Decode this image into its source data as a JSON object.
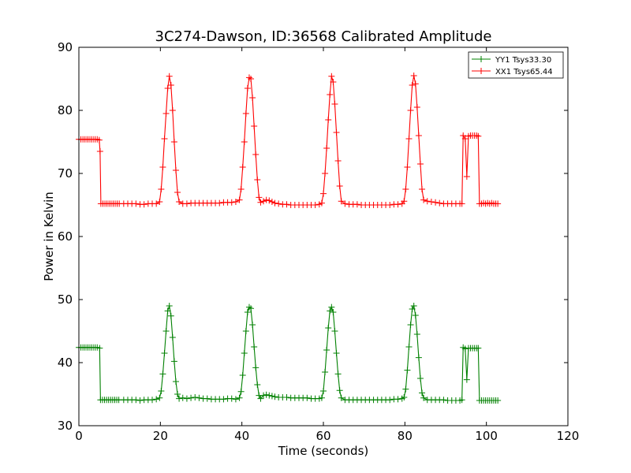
{
  "chart_data": {
    "type": "line",
    "title": "3C274-Dawson, ID:36568 Calibrated Amplitude",
    "xlabel": "Time (seconds)",
    "ylabel": "Power in Kelvin",
    "xlim": [
      0,
      120
    ],
    "ylim": [
      30,
      90
    ],
    "xticks": [
      0,
      20,
      40,
      60,
      80,
      100,
      120
    ],
    "yticks": [
      30,
      40,
      50,
      60,
      70,
      80,
      90
    ],
    "grid": false,
    "legend_position": "top-right",
    "series": [
      {
        "name": "YY1 Tsys33.30",
        "color": "#008000",
        "base": 34.1,
        "pre": 42.4,
        "points": [
          [
            0,
            42.4
          ],
          [
            0.5,
            42.4
          ],
          [
            1,
            42.4
          ],
          [
            1.5,
            42.4
          ],
          [
            2,
            42.4
          ],
          [
            2.5,
            42.4
          ],
          [
            3,
            42.4
          ],
          [
            3.5,
            42.4
          ],
          [
            4,
            42.4
          ],
          [
            4.5,
            42.4
          ],
          [
            5.1,
            42.3
          ],
          [
            5.3,
            34.1
          ],
          [
            5.8,
            34.1
          ],
          [
            6.3,
            34.1
          ],
          [
            6.8,
            34.1
          ],
          [
            7.3,
            34.1
          ],
          [
            7.8,
            34.1
          ],
          [
            8.3,
            34.1
          ],
          [
            8.8,
            34.1
          ],
          [
            9.3,
            34.1
          ],
          [
            9.8,
            34.1
          ],
          [
            11,
            34.1
          ],
          [
            12,
            34.1
          ],
          [
            13,
            34.1
          ],
          [
            14,
            34.1
          ],
          [
            15,
            34.0
          ],
          [
            16,
            34.1
          ],
          [
            17,
            34.1
          ],
          [
            18,
            34.1
          ],
          [
            19,
            34.2
          ],
          [
            19.8,
            34.4
          ],
          [
            20.2,
            35.5
          ],
          [
            20.6,
            38.2
          ],
          [
            21.0,
            41.5
          ],
          [
            21.4,
            45.0
          ],
          [
            21.8,
            48.2
          ],
          [
            22.2,
            49.0
          ],
          [
            22.6,
            47.4
          ],
          [
            23.0,
            44.0
          ],
          [
            23.4,
            40.2
          ],
          [
            23.8,
            37.0
          ],
          [
            24.2,
            35.0
          ],
          [
            24.6,
            34.3
          ],
          [
            25.5,
            34.4
          ],
          [
            26.5,
            34.3
          ],
          [
            27.5,
            34.4
          ],
          [
            28.5,
            34.5
          ],
          [
            29.5,
            34.4
          ],
          [
            30.5,
            34.3
          ],
          [
            31.5,
            34.3
          ],
          [
            32.5,
            34.2
          ],
          [
            33.5,
            34.2
          ],
          [
            34.5,
            34.2
          ],
          [
            35.5,
            34.2
          ],
          [
            36.5,
            34.3
          ],
          [
            37.5,
            34.3
          ],
          [
            38.5,
            34.2
          ],
          [
            39.4,
            34.4
          ],
          [
            39.8,
            35.4
          ],
          [
            40.2,
            38.0
          ],
          [
            40.6,
            41.5
          ],
          [
            41.0,
            45.0
          ],
          [
            41.4,
            48.0
          ],
          [
            41.8,
            48.8
          ],
          [
            42.2,
            48.6
          ],
          [
            42.6,
            46.0
          ],
          [
            43.0,
            42.5
          ],
          [
            43.4,
            39.2
          ],
          [
            43.8,
            36.5
          ],
          [
            44.2,
            34.8
          ],
          [
            44.6,
            34.3
          ],
          [
            45.3,
            34.8
          ],
          [
            46.0,
            34.9
          ],
          [
            46.7,
            34.8
          ],
          [
            47.4,
            34.7
          ],
          [
            48.1,
            34.6
          ],
          [
            49,
            34.5
          ],
          [
            50,
            34.5
          ],
          [
            51,
            34.5
          ],
          [
            52,
            34.4
          ],
          [
            53,
            34.4
          ],
          [
            54,
            34.4
          ],
          [
            55,
            34.4
          ],
          [
            56,
            34.4
          ],
          [
            57,
            34.3
          ],
          [
            58,
            34.3
          ],
          [
            59,
            34.3
          ],
          [
            59.6,
            34.4
          ],
          [
            60.0,
            35.5
          ],
          [
            60.4,
            38.5
          ],
          [
            60.8,
            42.0
          ],
          [
            61.2,
            45.5
          ],
          [
            61.6,
            48.2
          ],
          [
            62.0,
            48.8
          ],
          [
            62.4,
            48.0
          ],
          [
            62.8,
            45.0
          ],
          [
            63.2,
            41.5
          ],
          [
            63.6,
            38.2
          ],
          [
            64.0,
            35.6
          ],
          [
            64.4,
            34.4
          ],
          [
            65.3,
            34.1
          ],
          [
            66.3,
            34.1
          ],
          [
            67.3,
            34.1
          ],
          [
            68.3,
            34.1
          ],
          [
            69.3,
            34.1
          ],
          [
            70.3,
            34.1
          ],
          [
            71.3,
            34.1
          ],
          [
            72.3,
            34.1
          ],
          [
            73.3,
            34.1
          ],
          [
            74.3,
            34.1
          ],
          [
            75.3,
            34.1
          ],
          [
            76.3,
            34.1
          ],
          [
            77.3,
            34.2
          ],
          [
            78.3,
            34.2
          ],
          [
            79.3,
            34.3
          ],
          [
            79.8,
            34.5
          ],
          [
            80.2,
            35.8
          ],
          [
            80.6,
            38.8
          ],
          [
            81.0,
            42.5
          ],
          [
            81.4,
            46.0
          ],
          [
            81.8,
            48.5
          ],
          [
            82.2,
            49.0
          ],
          [
            82.6,
            47.5
          ],
          [
            83.0,
            44.5
          ],
          [
            83.4,
            40.8
          ],
          [
            83.8,
            37.5
          ],
          [
            84.2,
            35.2
          ],
          [
            84.6,
            34.4
          ],
          [
            85.5,
            34.1
          ],
          [
            86.5,
            34.1
          ],
          [
            87.5,
            34.1
          ],
          [
            88.5,
            34.1
          ],
          [
            89.5,
            34.1
          ],
          [
            90.5,
            34.0
          ],
          [
            91.5,
            34.0
          ],
          [
            92.5,
            34.0
          ],
          [
            93.5,
            34.0
          ],
          [
            94.0,
            34.1
          ],
          [
            94.3,
            42.4
          ],
          [
            94.8,
            42.2
          ],
          [
            95.2,
            37.3
          ],
          [
            95.6,
            42.3
          ],
          [
            96.1,
            42.3
          ],
          [
            96.6,
            42.3
          ],
          [
            97.1,
            42.3
          ],
          [
            97.6,
            42.3
          ],
          [
            98.0,
            42.3
          ],
          [
            98.3,
            34.0
          ],
          [
            98.8,
            34.0
          ],
          [
            99.3,
            34.0
          ],
          [
            99.8,
            34.0
          ],
          [
            100.3,
            34.0
          ],
          [
            100.8,
            34.0
          ],
          [
            101.3,
            34.0
          ],
          [
            101.8,
            34.0
          ],
          [
            102.3,
            34.0
          ],
          [
            102.8,
            34.0
          ]
        ]
      },
      {
        "name": "XX1 Tsys65.44",
        "color": "#ff0000",
        "base": 65.2,
        "pre": 75.4,
        "points": [
          [
            0,
            75.4
          ],
          [
            0.5,
            75.4
          ],
          [
            1,
            75.4
          ],
          [
            1.5,
            75.4
          ],
          [
            2,
            75.4
          ],
          [
            2.5,
            75.4
          ],
          [
            3,
            75.4
          ],
          [
            3.5,
            75.4
          ],
          [
            4,
            75.4
          ],
          [
            4.5,
            75.4
          ],
          [
            5.0,
            75.3
          ],
          [
            5.2,
            73.5
          ],
          [
            5.4,
            65.2
          ],
          [
            5.9,
            65.2
          ],
          [
            6.4,
            65.2
          ],
          [
            6.9,
            65.2
          ],
          [
            7.4,
            65.2
          ],
          [
            7.9,
            65.2
          ],
          [
            8.4,
            65.2
          ],
          [
            8.9,
            65.2
          ],
          [
            9.4,
            65.2
          ],
          [
            9.9,
            65.2
          ],
          [
            11,
            65.2
          ],
          [
            12,
            65.2
          ],
          [
            13,
            65.2
          ],
          [
            14,
            65.2
          ],
          [
            15,
            65.1
          ],
          [
            16,
            65.1
          ],
          [
            17,
            65.2
          ],
          [
            18,
            65.2
          ],
          [
            19,
            65.2
          ],
          [
            19.8,
            65.5
          ],
          [
            20.2,
            67.5
          ],
          [
            20.6,
            71.0
          ],
          [
            21.0,
            75.5
          ],
          [
            21.4,
            79.5
          ],
          [
            21.8,
            83.5
          ],
          [
            22.2,
            85.4
          ],
          [
            22.6,
            84.0
          ],
          [
            23.0,
            80.0
          ],
          [
            23.4,
            75.0
          ],
          [
            23.8,
            70.5
          ],
          [
            24.2,
            67.0
          ],
          [
            24.6,
            65.5
          ],
          [
            25.5,
            65.2
          ],
          [
            26.5,
            65.2
          ],
          [
            27.5,
            65.3
          ],
          [
            28.5,
            65.3
          ],
          [
            29.5,
            65.3
          ],
          [
            30.5,
            65.3
          ],
          [
            31.5,
            65.3
          ],
          [
            32.5,
            65.3
          ],
          [
            33.5,
            65.3
          ],
          [
            34.5,
            65.3
          ],
          [
            35.5,
            65.4
          ],
          [
            36.5,
            65.4
          ],
          [
            37.5,
            65.4
          ],
          [
            38.5,
            65.5
          ],
          [
            39.4,
            65.8
          ],
          [
            39.8,
            67.5
          ],
          [
            40.2,
            71.0
          ],
          [
            40.6,
            75.0
          ],
          [
            41.0,
            79.5
          ],
          [
            41.4,
            83.5
          ],
          [
            41.8,
            85.2
          ],
          [
            42.2,
            85.0
          ],
          [
            42.6,
            82.0
          ],
          [
            43.0,
            77.5
          ],
          [
            43.4,
            73.0
          ],
          [
            43.8,
            69.0
          ],
          [
            44.2,
            66.2
          ],
          [
            44.6,
            65.4
          ],
          [
            45.3,
            65.6
          ],
          [
            46.0,
            65.8
          ],
          [
            46.7,
            65.7
          ],
          [
            47.4,
            65.5
          ],
          [
            48.1,
            65.3
          ],
          [
            49,
            65.2
          ],
          [
            50,
            65.1
          ],
          [
            51,
            65.1
          ],
          [
            52,
            65.0
          ],
          [
            53,
            65.0
          ],
          [
            54,
            65.0
          ],
          [
            55,
            65.0
          ],
          [
            56,
            65.0
          ],
          [
            57,
            65.0
          ],
          [
            58,
            65.0
          ],
          [
            59,
            65.1
          ],
          [
            59.6,
            65.3
          ],
          [
            60.0,
            66.8
          ],
          [
            60.4,
            70.0
          ],
          [
            60.8,
            74.0
          ],
          [
            61.2,
            78.5
          ],
          [
            61.6,
            82.5
          ],
          [
            62.0,
            85.4
          ],
          [
            62.4,
            84.5
          ],
          [
            62.8,
            81.0
          ],
          [
            63.2,
            76.5
          ],
          [
            63.6,
            72.0
          ],
          [
            64.0,
            68.0
          ],
          [
            64.4,
            65.6
          ],
          [
            65.3,
            65.2
          ],
          [
            66.3,
            65.1
          ],
          [
            67.3,
            65.1
          ],
          [
            68.3,
            65.1
          ],
          [
            69.3,
            65.0
          ],
          [
            70.3,
            65.0
          ],
          [
            71.3,
            65.0
          ],
          [
            72.3,
            65.0
          ],
          [
            73.3,
            65.0
          ],
          [
            74.3,
            65.0
          ],
          [
            75.3,
            65.0
          ],
          [
            76.3,
            65.0
          ],
          [
            77.3,
            65.1
          ],
          [
            78.3,
            65.1
          ],
          [
            79.3,
            65.2
          ],
          [
            79.8,
            65.6
          ],
          [
            80.2,
            67.5
          ],
          [
            80.6,
            71.0
          ],
          [
            81.0,
            75.5
          ],
          [
            81.4,
            80.0
          ],
          [
            81.8,
            84.0
          ],
          [
            82.2,
            85.5
          ],
          [
            82.6,
            84.2
          ],
          [
            83.0,
            80.5
          ],
          [
            83.4,
            76.0
          ],
          [
            83.8,
            71.5
          ],
          [
            84.2,
            67.5
          ],
          [
            84.6,
            65.8
          ],
          [
            85.5,
            65.6
          ],
          [
            86.5,
            65.5
          ],
          [
            87.5,
            65.4
          ],
          [
            88.5,
            65.3
          ],
          [
            89.5,
            65.2
          ],
          [
            90.5,
            65.2
          ],
          [
            91.5,
            65.2
          ],
          [
            92.5,
            65.2
          ],
          [
            93.5,
            65.2
          ],
          [
            94.0,
            65.2
          ],
          [
            94.3,
            76.0
          ],
          [
            94.8,
            75.5
          ],
          [
            95.2,
            69.5
          ],
          [
            95.6,
            75.9
          ],
          [
            96.1,
            76.0
          ],
          [
            96.6,
            76.0
          ],
          [
            97.1,
            76.0
          ],
          [
            97.6,
            76.0
          ],
          [
            98.0,
            75.9
          ],
          [
            98.3,
            65.2
          ],
          [
            98.8,
            65.2
          ],
          [
            99.3,
            65.3
          ],
          [
            99.8,
            65.2
          ],
          [
            100.3,
            65.3
          ],
          [
            100.8,
            65.2
          ],
          [
            101.3,
            65.3
          ],
          [
            101.8,
            65.2
          ],
          [
            102.3,
            65.2
          ],
          [
            102.8,
            65.2
          ]
        ]
      }
    ]
  }
}
